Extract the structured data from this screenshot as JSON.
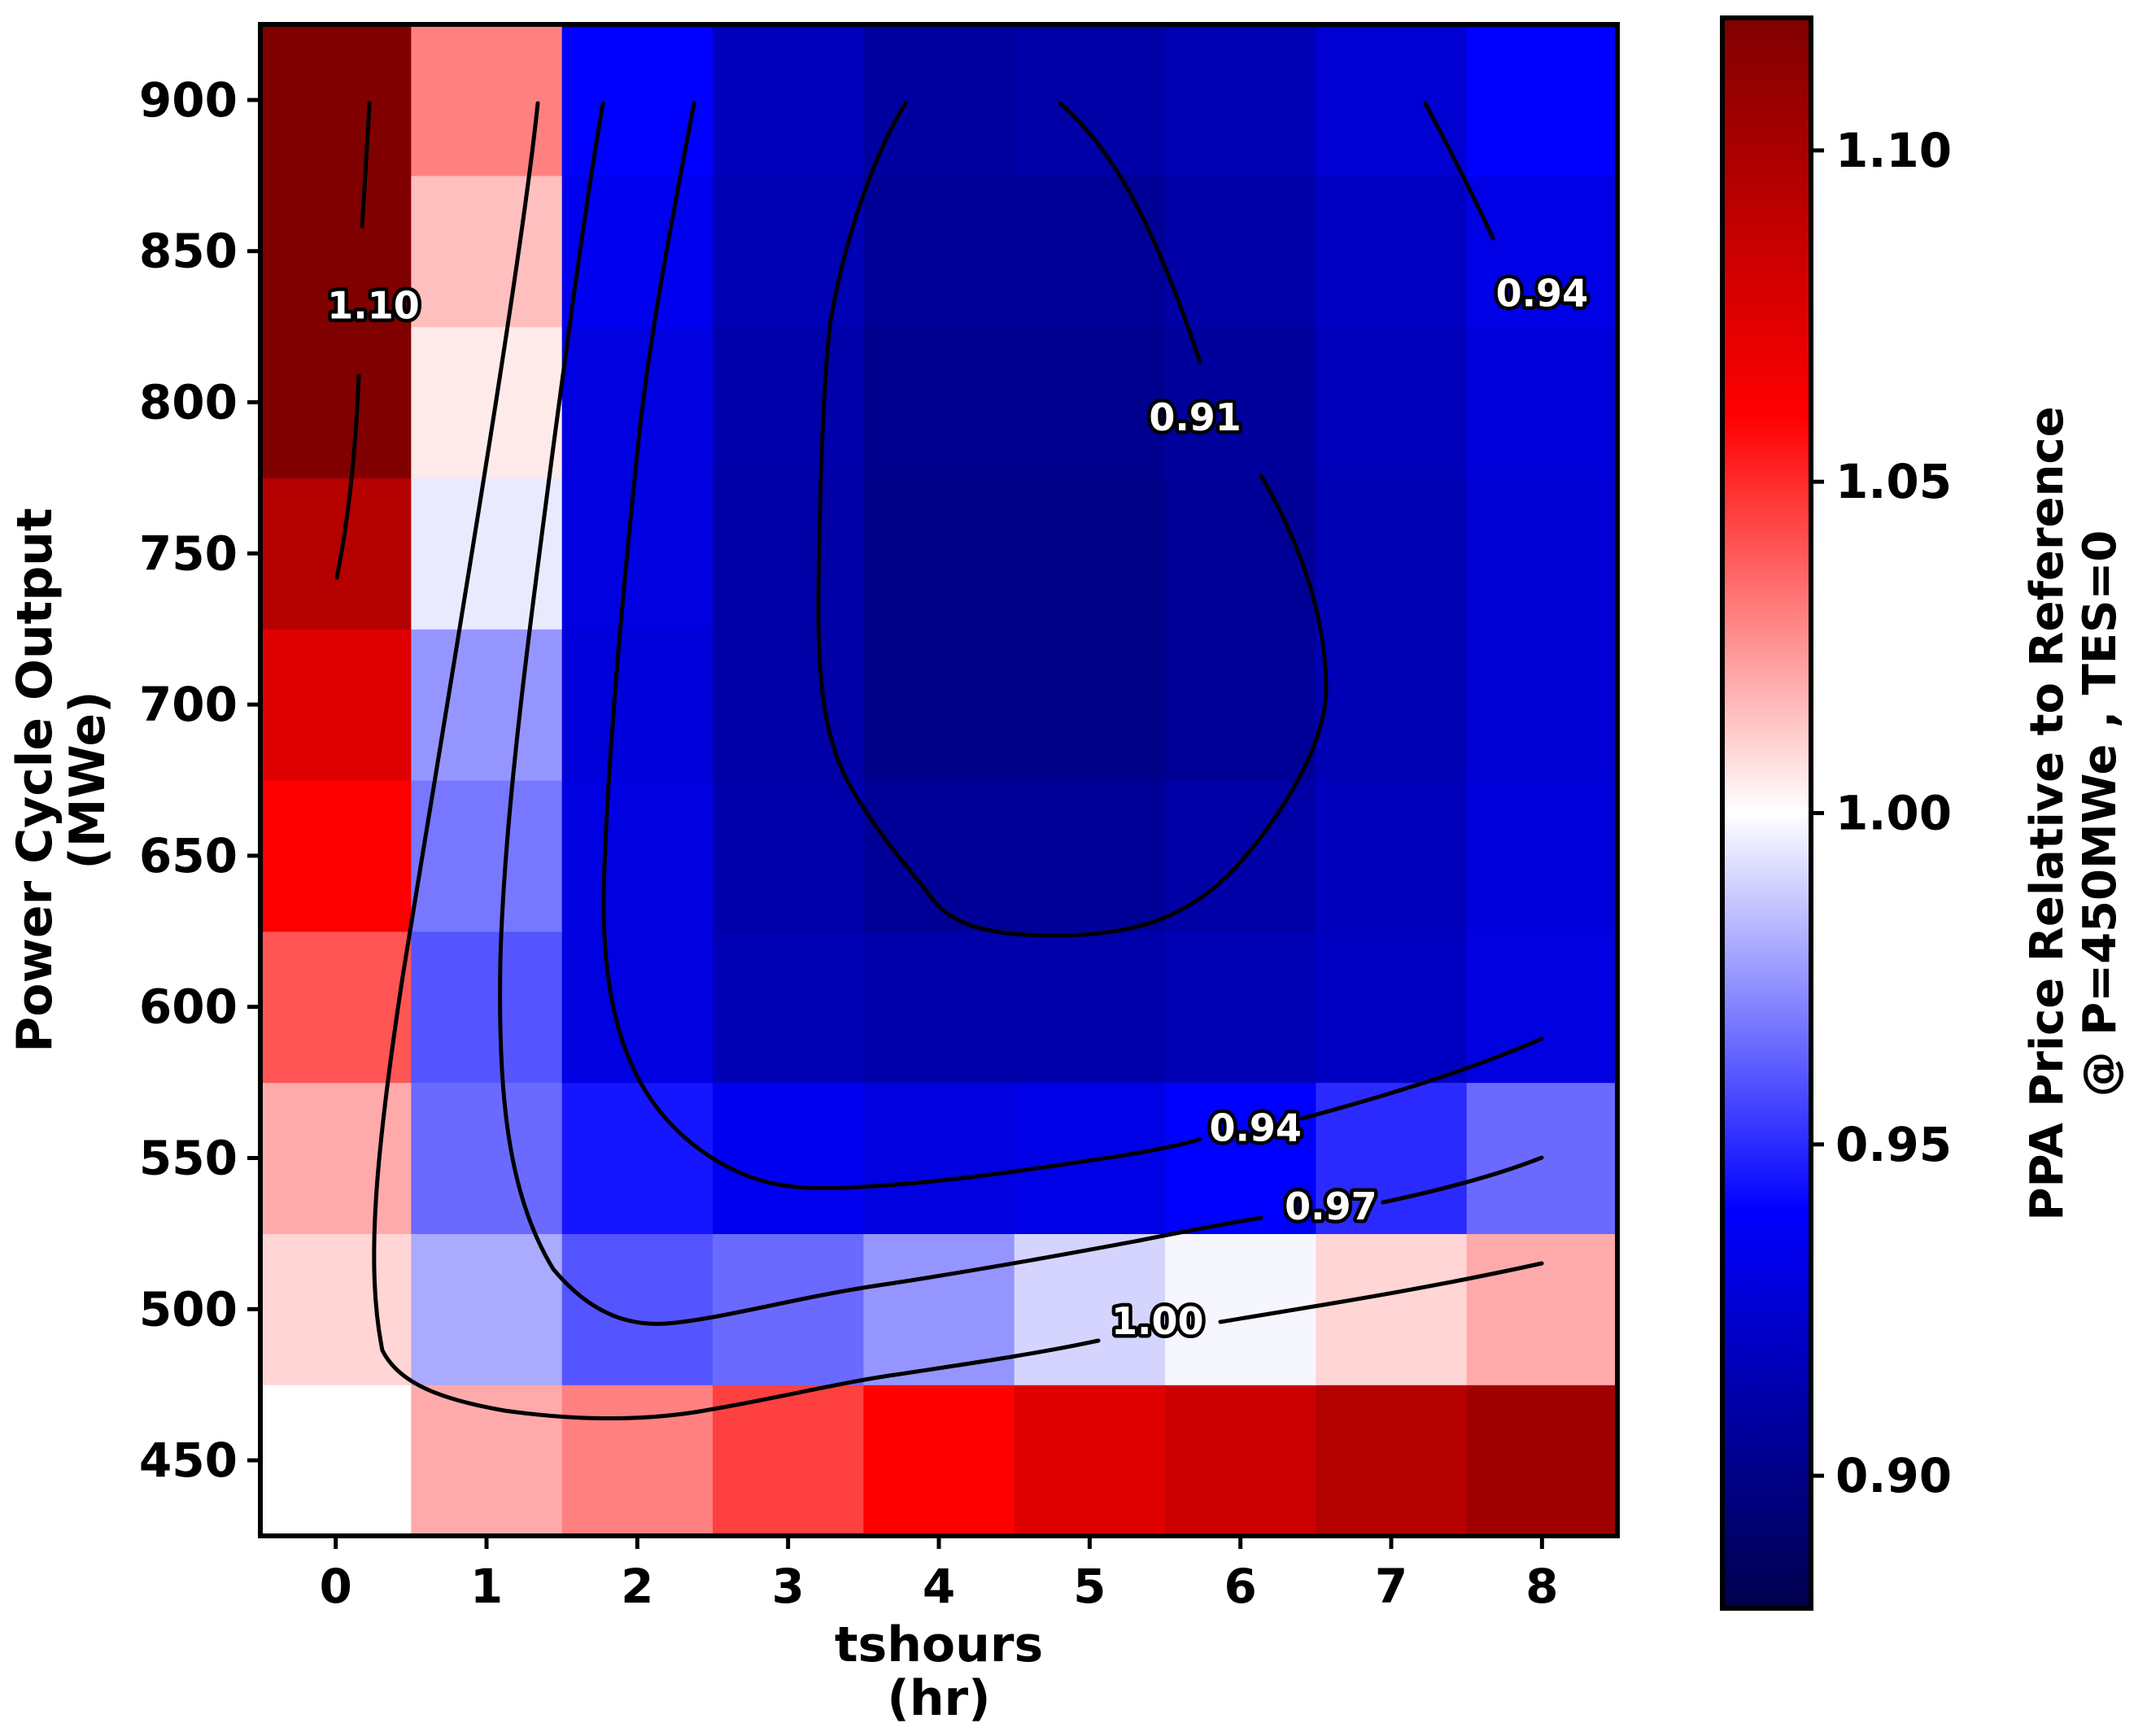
{
  "chart_data": {
    "type": "heatmap",
    "x": [
      0,
      1,
      2,
      3,
      4,
      5,
      6,
      7,
      8
    ],
    "y": [
      450,
      500,
      550,
      600,
      650,
      700,
      750,
      800,
      850,
      900
    ],
    "xlabel_line1": "tshours",
    "xlabel_line2": "(hr)",
    "ylabel_line1": "Power Cycle Output",
    "ylabel_line2": "(MWe)",
    "x_ticks": [
      "0",
      "1",
      "2",
      "3",
      "4",
      "5",
      "6",
      "7",
      "8"
    ],
    "y_ticks": [
      "450",
      "500",
      "550",
      "600",
      "650",
      "700",
      "750",
      "800",
      "850",
      "900"
    ],
    "values": [
      [
        1.0,
        1.02,
        1.03,
        1.045,
        1.06,
        1.075,
        1.085,
        1.095,
        1.105
      ],
      [
        1.01,
        0.98,
        0.96,
        0.965,
        0.975,
        0.99,
        0.998,
        1.01,
        1.02
      ],
      [
        1.02,
        0.965,
        0.945,
        0.935,
        0.93,
        0.932,
        0.94,
        0.95,
        0.965
      ],
      [
        1.04,
        0.96,
        0.93,
        0.915,
        0.912,
        0.912,
        0.915,
        0.92,
        0.93
      ],
      [
        1.06,
        0.968,
        0.93,
        0.912,
        0.905,
        0.905,
        0.91,
        0.918,
        0.928
      ],
      [
        1.075,
        0.975,
        0.928,
        0.91,
        0.9,
        0.9,
        0.905,
        0.915,
        0.926
      ],
      [
        1.095,
        0.995,
        0.93,
        0.91,
        0.9,
        0.9,
        0.905,
        0.915,
        0.926
      ],
      [
        1.12,
        1.005,
        0.93,
        0.912,
        0.902,
        0.902,
        0.907,
        0.917,
        0.928
      ],
      [
        1.12,
        1.015,
        0.935,
        0.915,
        0.905,
        0.905,
        0.91,
        0.92,
        0.932
      ],
      [
        1.12,
        1.03,
        0.94,
        0.918,
        0.908,
        0.91,
        0.915,
        0.925,
        0.94
      ]
    ],
    "vmin": 0.88,
    "vmax": 1.12,
    "colormap": "seismic",
    "colorbar": {
      "ticks": [
        "0.90",
        "0.95",
        "1.00",
        "1.05",
        "1.10"
      ],
      "tick_values": [
        0.9,
        0.95,
        1.0,
        1.05,
        1.1
      ],
      "label_line1": "PPA Price Relative to Reference",
      "label_line2": "@ P=450MWe , TES=0"
    },
    "contours": [
      {
        "level": 0.91,
        "label": "0.91",
        "label_at": [
          5.7,
          795
        ]
      },
      {
        "level": 0.94,
        "label": "0.94",
        "label_at": [
          6.1,
          560
        ]
      },
      {
        "level": 0.94,
        "label": "0.94",
        "label_at": [
          8.0,
          836
        ]
      },
      {
        "level": 0.97,
        "label": "0.97",
        "label_at": [
          6.6,
          534
        ]
      },
      {
        "level": 1.0,
        "label": "1.00",
        "label_at": [
          5.45,
          496
        ]
      },
      {
        "level": 1.1,
        "label": "1.10",
        "label_at": [
          0.25,
          832
        ]
      }
    ]
  }
}
